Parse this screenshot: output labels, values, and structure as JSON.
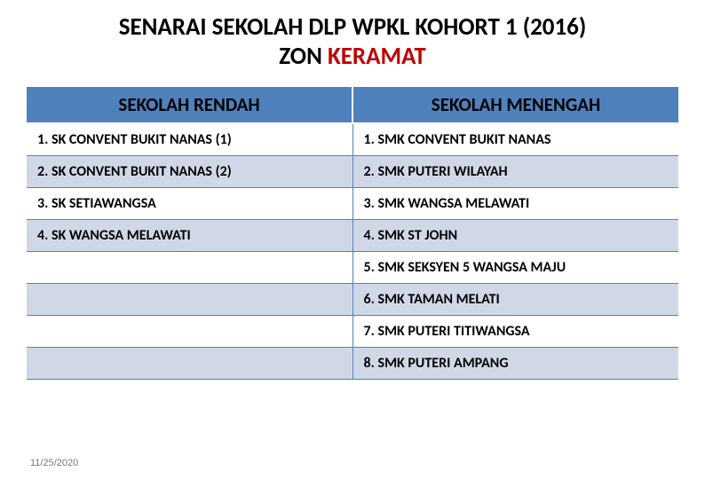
{
  "title": {
    "line1": "SENARAI SEKOLAH DLP WPKL KOHORT 1 (2016)",
    "line2_prefix": "ZON ",
    "line2_highlight": "KERAMAT"
  },
  "colors": {
    "header_bg": "#4f81bd",
    "alt_row_bg": "#d0d8e8",
    "border": "#4f81bd",
    "highlight_text": "#c00000",
    "text": "#000000",
    "footer_text": "#7a7a7a",
    "page_bg": "#ffffff"
  },
  "table": {
    "headers": [
      "SEKOLAH RENDAH",
      "SEKOLAH MENENGAH"
    ],
    "rows": [
      {
        "left": "1. SK CONVENT BUKIT NANAS (1)",
        "right": "1.  SMK CONVENT BUKIT NANAS",
        "alt": false
      },
      {
        "left": "2. SK CONVENT BUKIT NANAS (2)",
        "right": "2.  SMK PUTERI WILAYAH",
        "alt": true
      },
      {
        "left": "3. SK SETIAWANGSA",
        "right": "3.  SMK WANGSA MELAWATI",
        "alt": false
      },
      {
        "left": "4. SK WANGSA MELAWATI",
        "right": "4.  SMK ST JOHN",
        "alt": true
      },
      {
        "left": "",
        "right": "5.  SMK SEKSYEN 5 WANGSA MAJU",
        "alt": false
      },
      {
        "left": "",
        "right": "6.  SMK TAMAN MELATI",
        "alt": true
      },
      {
        "left": "",
        "right": "7.  SMK PUTERI TITIWANGSA",
        "alt": false
      },
      {
        "left": "",
        "right": "8.  SMK PUTERI AMPANG",
        "alt": true
      }
    ]
  },
  "footer_date": "11/25/2020"
}
